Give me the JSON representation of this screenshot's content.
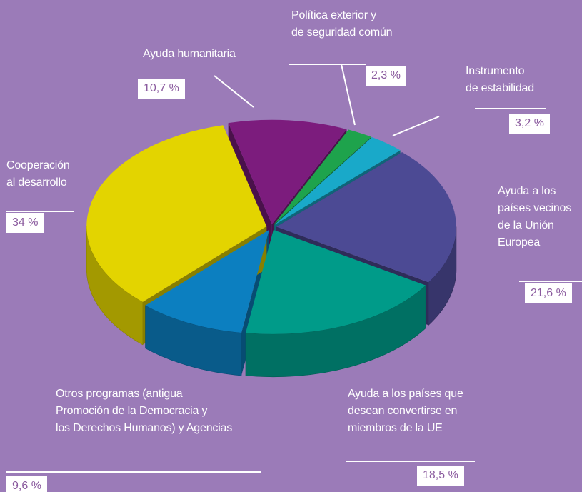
{
  "chart_data": {
    "type": "pie",
    "categories": [
      "Ayuda humanitaria",
      "Política exterior y\nde seguridad común",
      "Instrumento\nde estabilidad",
      "Ayuda a los\npaíses vecinos\nde la Unión\nEuropea",
      "Ayuda a los países que\ndesean convertirse en\nmiembros de la UE",
      "Otros programas (antigua\nPromoción de la Democracia y\nlos Derechos Humanos) y Agencias",
      "Cooperación\nal desarrollo"
    ],
    "values": [
      10.7,
      2.3,
      3.2,
      21.6,
      18.5,
      9.6,
      34
    ],
    "value_labels": [
      "10,7 %",
      "2,3 %",
      "3,2 %",
      "21,6 %",
      "18,5 %",
      "9,6 %",
      "34 %"
    ],
    "colors": [
      "#7c1c7d",
      "#1ea34c",
      "#19a9c9",
      "#4c4a94",
      "#009b89",
      "#0c7fc0",
      "#e3d400"
    ]
  }
}
